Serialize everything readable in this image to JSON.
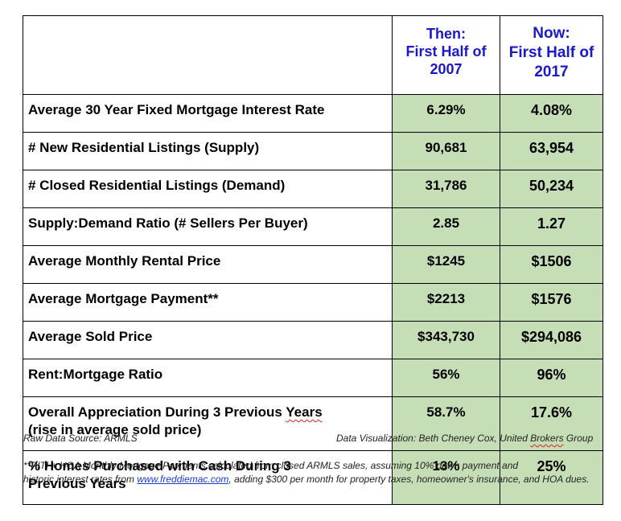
{
  "table": {
    "headers": {
      "then": [
        "Then:",
        "First Half of",
        "2007"
      ],
      "now": [
        "Now:",
        "First Half of",
        "2017"
      ]
    },
    "rows": [
      {
        "label": [
          "Average 30 Year Fixed Mortgage Interest Rate"
        ],
        "then": "6.29%",
        "now": "4.08%"
      },
      {
        "label": [
          "# New Residential Listings (Supply)"
        ],
        "then": "90,681",
        "now": "63,954"
      },
      {
        "label": [
          "# Closed Residential Listings (Demand)"
        ],
        "then": "31,786",
        "now": "50,234"
      },
      {
        "label": [
          "Supply:Demand Ratio (# Sellers Per Buyer)"
        ],
        "then": "2.85",
        "now": "1.27"
      },
      {
        "label": [
          "Average Monthly Rental Price"
        ],
        "then": "$1245",
        "now": "$1506"
      },
      {
        "label": [
          "Average Mortgage Payment**"
        ],
        "then": "$2213",
        "now": "$1576"
      },
      {
        "label": [
          "Average Sold Price"
        ],
        "then": "$343,730",
        "now": "$294,086"
      },
      {
        "label": [
          "Rent:Mortgage Ratio"
        ],
        "then": "56%",
        "now": "96%"
      },
      {
        "label": [
          "Overall Appreciation During 3 Previous ",
          "Years",
          "(rise in average sold price)"
        ],
        "then": "58.7%",
        "now": "17.6%"
      },
      {
        "label": [
          "% Homes Purchased with Cash During 3",
          "Previous Years"
        ],
        "then": "13%",
        "now": "25%"
      }
    ]
  },
  "source": "Raw Data Source:  ARMLS",
  "credit": {
    "prefix": "Data Visualization:  Beth Cheney Cox, United ",
    "squiggle_word": "Brokers",
    "suffix": " Group"
  },
  "footnote": {
    "line1": "**PITI + HOA Monthly Mortgage Payments calculated from closed ARMLS sales, assuming 10% down payment and",
    "line2_prefix": "historic interest rates from ",
    "link_text": "www.freddiemac.com",
    "line2_suffix": ", adding $300 per month for  property taxes, homeowner's insurance, and HOA dues."
  },
  "colors": {
    "header_text": "#1a18c8",
    "value_cell_bg": "#c5deb6",
    "link": "#1a3ccc"
  }
}
